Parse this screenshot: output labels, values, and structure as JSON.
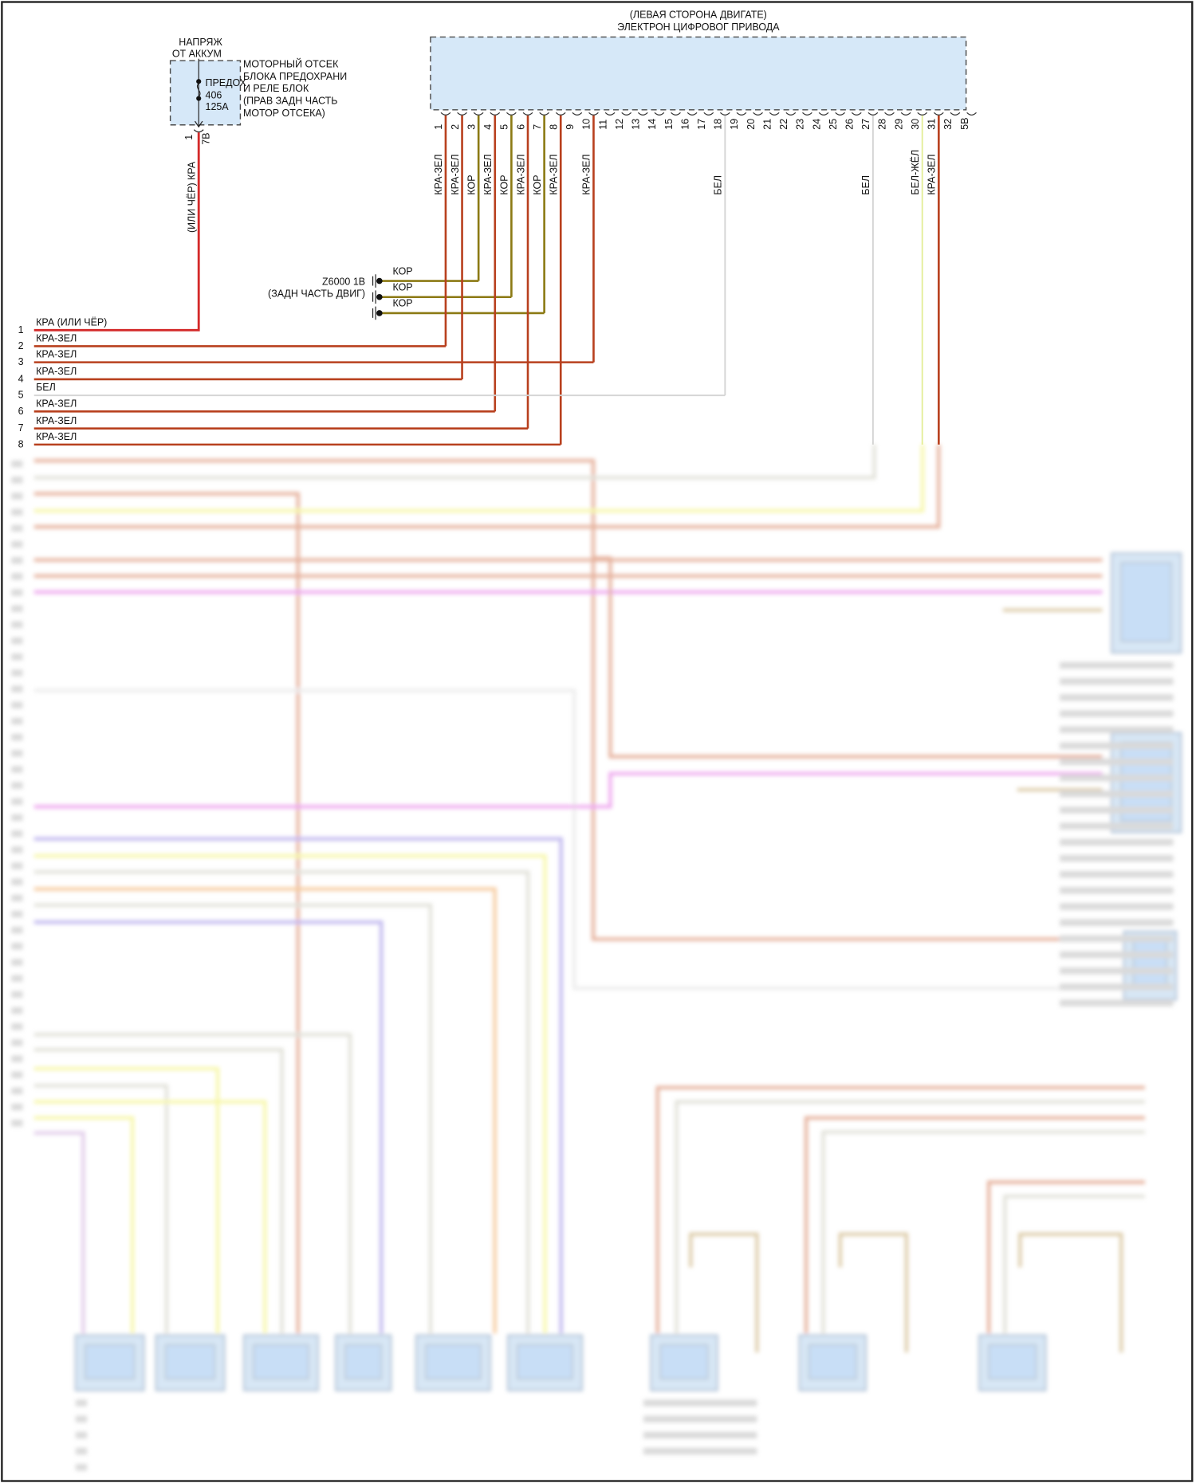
{
  "fuse_block": {
    "supply_label": [
      "НАПРЯЖ",
      "ОТ АККУМ"
    ],
    "location_label": [
      "МОТОРНЫЙ ОТСЕК",
      "БЛОКА ПРЕДОХРАНИ",
      "И РЕЛЕ БЛОК",
      "(ПРАВ ЗАДН ЧАСТЬ",
      "МОТОР ОТСЕКА)"
    ],
    "fuse_name": "ПРЕДОХ",
    "fuse_number": "406",
    "fuse_rating": "125A",
    "pin_number": "1",
    "connector_id": "7B",
    "wire_label": "(ИЛИ ЧЁР) КРА"
  },
  "module": {
    "title_line1": "(ЛЕВАЯ СТОРОНА ДВИГАТЕ)",
    "title_line2": "ЭЛЕКТРОН ЦИФРОВОГ ПРИВОДА",
    "pins": [
      "1",
      "2",
      "3",
      "4",
      "5",
      "6",
      "7",
      "8",
      "9",
      "10",
      "11",
      "12",
      "13",
      "14",
      "15",
      "16",
      "17",
      "18",
      "19",
      "20",
      "21",
      "22",
      "23",
      "24",
      "25",
      "26",
      "27",
      "28",
      "29",
      "30",
      "31",
      "32",
      "5B"
    ],
    "pin_wires": [
      {
        "pin": "1",
        "color": "КРА-ЗЕЛ"
      },
      {
        "pin": "2",
        "color": "КРА-ЗЕЛ"
      },
      {
        "pin": "3",
        "color": "КОР"
      },
      {
        "pin": "4",
        "color": "КРА-ЗЕЛ"
      },
      {
        "pin": "5",
        "color": "КОР"
      },
      {
        "pin": "6",
        "color": "КРА-ЗЕЛ"
      },
      {
        "pin": "7",
        "color": "КОР"
      },
      {
        "pin": "8",
        "color": "КРА-ЗЕЛ"
      },
      {
        "pin": "10",
        "color": "КРА-ЗЕЛ"
      },
      {
        "pin": "18",
        "color": "БЕЛ"
      },
      {
        "pin": "27",
        "color": "БЕЛ"
      },
      {
        "pin": "30",
        "color": "БЕЛ-ЖЁЛ"
      },
      {
        "pin": "31",
        "color": "КРА-ЗЕЛ"
      }
    ]
  },
  "ground": {
    "id": "Z6000 1B",
    "location": "(ЗАДН ЧАСТЬ ДВИГ)",
    "wires": [
      "КОР",
      "КОР",
      "КОР"
    ]
  },
  "harness_rows": [
    {
      "num": "1",
      "label": "КРА  (ИЛИ ЧЁР)"
    },
    {
      "num": "2",
      "label": "КРА-ЗЕЛ"
    },
    {
      "num": "3",
      "label": "КРА-ЗЕЛ"
    },
    {
      "num": "4",
      "label": "КРА-ЗЕЛ"
    },
    {
      "num": "5",
      "label": "БЕЛ"
    },
    {
      "num": "6",
      "label": "КРА-ЗЕЛ"
    },
    {
      "num": "7",
      "label": "КРА-ЗЕЛ"
    },
    {
      "num": "8",
      "label": "КРА-ЗЕЛ"
    }
  ],
  "wire_colors": {
    "КРА": "#d42a2a",
    "КРА-ЗЕЛ": "#b8401e",
    "КОР": "#8c7a14",
    "БЕЛ": "#d4d4d4",
    "БЕЛ-ЖЁЛ": "#e4ee9a",
    "module_fill": "#d6e8f8"
  }
}
